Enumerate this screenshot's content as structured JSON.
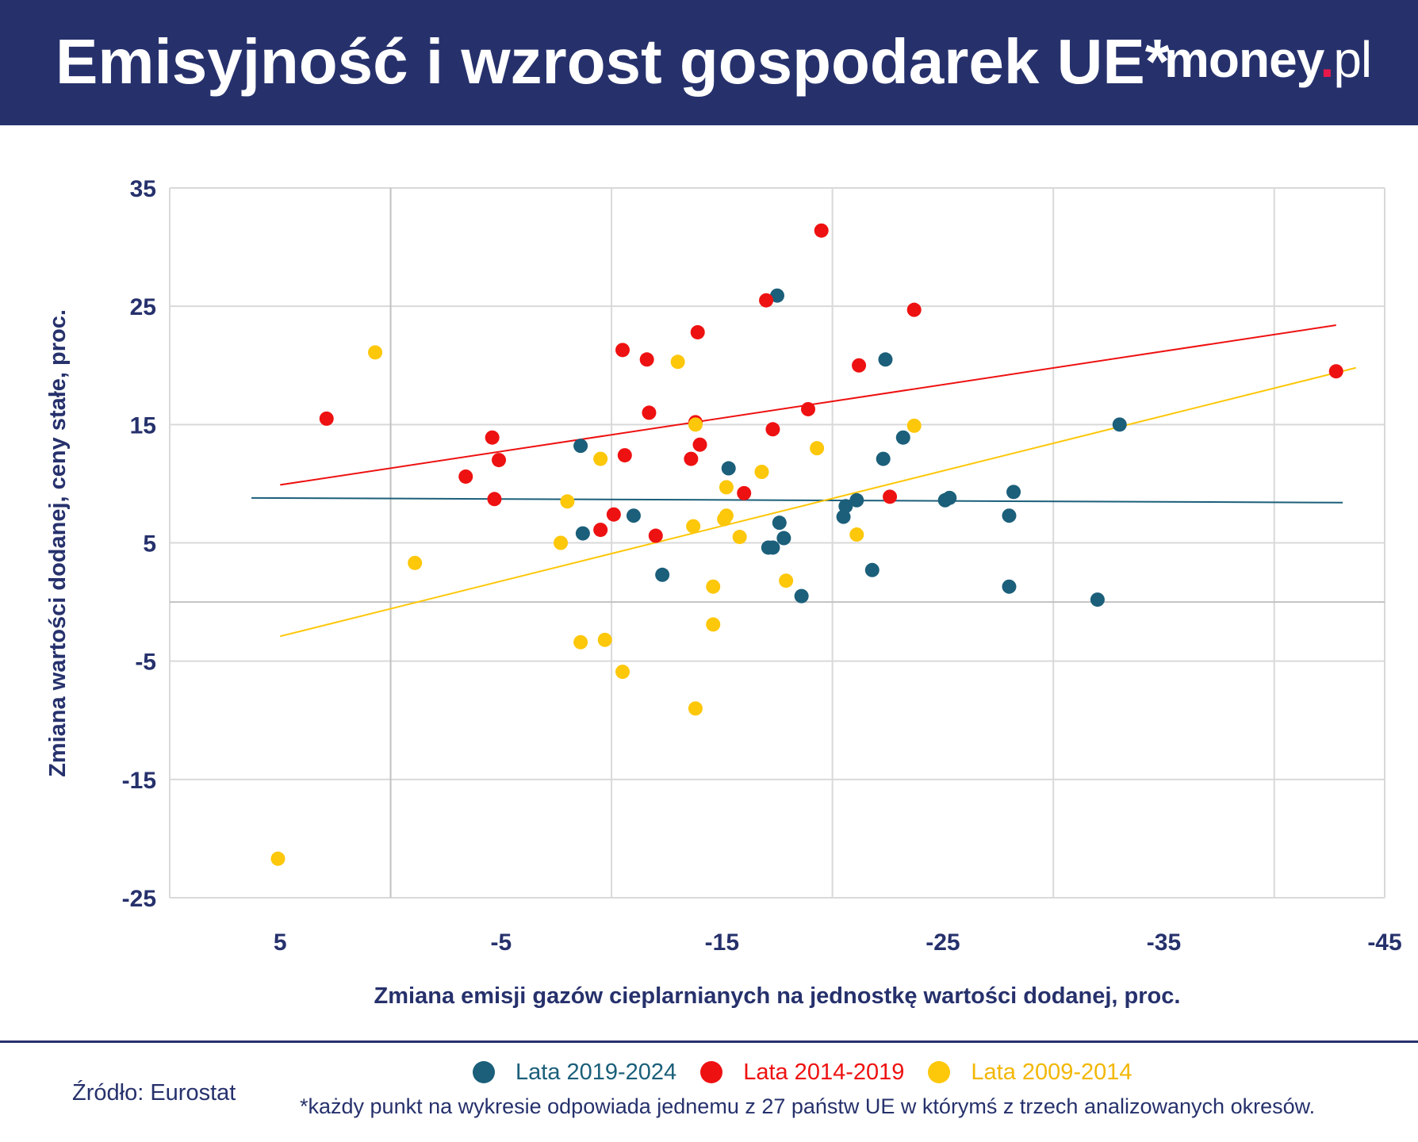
{
  "header": {
    "title": "Emisyjność i wzrost gospodarek UE*",
    "logo_main": "money",
    "logo_dot": ".",
    "logo_suffix": "pl"
  },
  "colors": {
    "header_bg": "#26316c",
    "series_2019_2024": "#1b5f7a",
    "series_2014_2019": "#ee1111",
    "series_2009_2014": "#fdc70a",
    "logo_dot": "#e8184b"
  },
  "chart_data": {
    "type": "scatter",
    "xlabel": "Zmiana emisji gazów cieplarnianych na jednostkę wartości dodanej, proc.",
    "ylabel": "Zmiana wartości dodanej, ceny stałe, proc.",
    "xlim": [
      10,
      -45
    ],
    "ylim": [
      -25,
      35
    ],
    "x_axis_reversed": true,
    "x_ticks": [
      5,
      -5,
      -15,
      -25,
      -35,
      -45
    ],
    "y_ticks": [
      35,
      25,
      15,
      5,
      -5,
      -15,
      -25
    ],
    "grid": true,
    "legend_position": "bottom",
    "series": [
      {
        "name": "Lata 2019-2024",
        "color": "#1b5f7a",
        "points": [
          [
            -8.6,
            13.2
          ],
          [
            -8.7,
            5.8
          ],
          [
            -11.0,
            7.3
          ],
          [
            -12.3,
            2.3
          ],
          [
            -15.3,
            11.3
          ],
          [
            -17.5,
            25.9
          ],
          [
            -17.6,
            6.7
          ],
          [
            -17.8,
            5.4
          ],
          [
            -17.1,
            4.6
          ],
          [
            -17.3,
            4.6
          ],
          [
            -18.6,
            0.5
          ],
          [
            -20.5,
            7.2
          ],
          [
            -20.6,
            8.1
          ],
          [
            -21.1,
            8.6
          ],
          [
            -22.3,
            12.1
          ],
          [
            -22.4,
            20.5
          ],
          [
            -21.8,
            2.7
          ],
          [
            -23.2,
            13.9
          ],
          [
            -25.1,
            8.6
          ],
          [
            -25.3,
            8.8
          ],
          [
            -28.2,
            9.3
          ],
          [
            -28.0,
            7.3
          ],
          [
            -28.0,
            1.3
          ],
          [
            -32.0,
            0.2
          ],
          [
            -33.0,
            15.0
          ]
        ]
      },
      {
        "name": "Lata 2014-2019",
        "color": "#ee1111",
        "points": [
          [
            2.9,
            15.5
          ],
          [
            -3.4,
            10.6
          ],
          [
            -4.6,
            13.9
          ],
          [
            -4.7,
            8.7
          ],
          [
            -4.9,
            12.0
          ],
          [
            -10.1,
            7.4
          ],
          [
            -9.5,
            6.1
          ],
          [
            -10.5,
            21.3
          ],
          [
            -10.6,
            12.4
          ],
          [
            -11.6,
            20.5
          ],
          [
            -11.7,
            16.0
          ],
          [
            -12.0,
            5.6
          ],
          [
            -13.6,
            12.1
          ],
          [
            -13.8,
            15.2
          ],
          [
            -13.9,
            22.8
          ],
          [
            -14.0,
            13.3
          ],
          [
            -16.0,
            9.2
          ],
          [
            -17.0,
            25.5
          ],
          [
            -17.3,
            14.6
          ],
          [
            -18.9,
            16.3
          ],
          [
            -19.5,
            31.4
          ],
          [
            -21.2,
            20.0
          ],
          [
            -22.6,
            8.9
          ],
          [
            -23.7,
            24.7
          ],
          [
            -42.8,
            19.5
          ]
        ]
      },
      {
        "name": "Lata 2009-2014",
        "color": "#fdc70a",
        "points": [
          [
            0.7,
            21.1
          ],
          [
            5.1,
            -21.7
          ],
          [
            -1.1,
            3.3
          ],
          [
            -7.7,
            5.0
          ],
          [
            -8.0,
            8.5
          ],
          [
            -8.6,
            -3.4
          ],
          [
            -9.5,
            12.1
          ],
          [
            -9.7,
            -3.2
          ],
          [
            -10.5,
            -5.9
          ],
          [
            -13.0,
            20.3
          ],
          [
            -13.7,
            6.4
          ],
          [
            -13.8,
            15.0
          ],
          [
            -13.8,
            -9.0
          ],
          [
            -14.6,
            1.3
          ],
          [
            -14.6,
            -1.9
          ],
          [
            -15.1,
            7.0
          ],
          [
            -15.2,
            9.7
          ],
          [
            -15.2,
            7.3
          ],
          [
            -15.8,
            5.5
          ],
          [
            -16.8,
            11.0
          ],
          [
            -17.9,
            1.8
          ],
          [
            -19.3,
            13.0
          ],
          [
            -21.1,
            5.7
          ],
          [
            -23.7,
            14.9
          ]
        ]
      }
    ],
    "trendlines": [
      {
        "series": "Lata 2019-2024",
        "from": [
          6.3,
          8.8
        ],
        "to": [
          -43.1,
          8.4
        ]
      },
      {
        "series": "Lata 2014-2019",
        "from": [
          5.0,
          9.9
        ],
        "to": [
          -42.8,
          23.4
        ]
      },
      {
        "series": "Lata 2009-2014",
        "from": [
          5.0,
          -2.9
        ],
        "to": [
          -43.7,
          19.8
        ]
      }
    ]
  },
  "footer": {
    "legend": [
      {
        "label": "Lata 2019-2024",
        "color": "#1b5f7a"
      },
      {
        "label": "Lata 2014-2019",
        "color": "#ee1111"
      },
      {
        "label": "Lata 2009-2014",
        "color": "#fdc70a"
      }
    ],
    "source": "Źródło: Eurostat",
    "footnote": "*każdy punkt na wykresie odpowiada jednemu z 27 państw UE w którymś z trzech analizowanych okresów."
  }
}
